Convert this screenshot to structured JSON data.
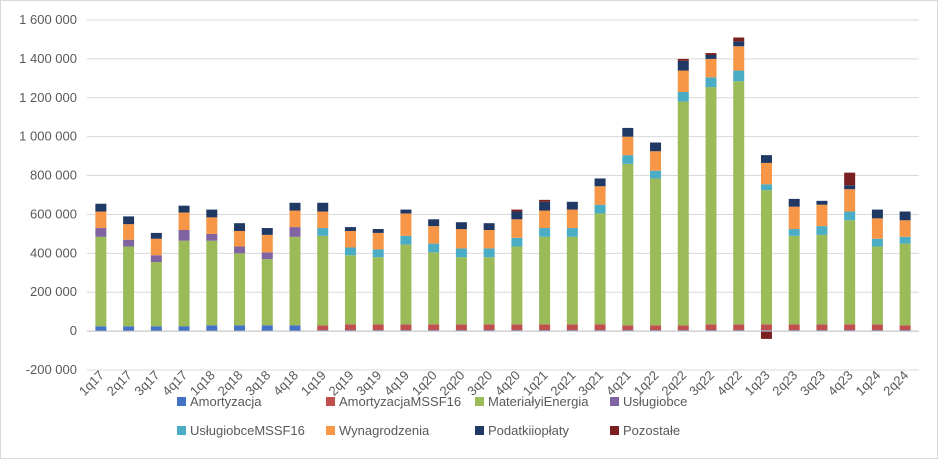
{
  "chart_data": {
    "type": "bar",
    "stacked": true,
    "title": "",
    "xlabel": "",
    "ylabel": "",
    "ylim": [
      -200000,
      1600000
    ],
    "yticks": [
      -200000,
      0,
      200000,
      400000,
      600000,
      800000,
      1000000,
      1200000,
      1400000,
      1600000
    ],
    "ytick_labels": [
      "-200 000",
      "0",
      "200 000",
      "400 000",
      "600 000",
      "800 000",
      "1 000 000",
      "1 200 000",
      "1 400 000",
      "1 600 000"
    ],
    "grid": "horizontal",
    "legend_position": "bottom",
    "categories": [
      "1q17",
      "2q17",
      "3q17",
      "4q17",
      "1q18",
      "2q18",
      "3q18",
      "4q18",
      "1q19",
      "2q19",
      "3q19",
      "4q19",
      "1q20",
      "2q20",
      "3q20",
      "4q20",
      "1q21",
      "2q21",
      "3q21",
      "4q21",
      "1q22",
      "2q22",
      "3q22",
      "4q22",
      "1q23",
      "2q23",
      "3q23",
      "4q23",
      "1q24",
      "2q24"
    ],
    "series": [
      {
        "name": "Amortyzacja",
        "color": "#4472c4",
        "values": [
          25000,
          25000,
          25000,
          25000,
          30000,
          30000,
          30000,
          30000,
          5000,
          5000,
          5000,
          5000,
          5000,
          5000,
          5000,
          5000,
          5000,
          5000,
          5000,
          5000,
          5000,
          5000,
          5000,
          5000,
          5000,
          5000,
          5000,
          5000,
          5000,
          5000
        ]
      },
      {
        "name": "AmortyzacjaMSSF16",
        "color": "#c0504d",
        "values": [
          0,
          0,
          0,
          0,
          0,
          0,
          0,
          0,
          25000,
          30000,
          30000,
          30000,
          30000,
          30000,
          30000,
          30000,
          30000,
          30000,
          30000,
          25000,
          25000,
          25000,
          30000,
          30000,
          30000,
          30000,
          30000,
          30000,
          30000,
          25000
        ]
      },
      {
        "name": "MateriałyiEnergia",
        "color": "#9bbb59",
        "values": [
          460000,
          410000,
          330000,
          440000,
          435000,
          370000,
          340000,
          455000,
          460000,
          355000,
          345000,
          410000,
          370000,
          345000,
          345000,
          400000,
          450000,
          450000,
          570000,
          830000,
          755000,
          1150000,
          1220000,
          1250000,
          690000,
          455000,
          460000,
          535000,
          400000,
          420000
        ]
      },
      {
        "name": "Usługiobce",
        "color": "#8064a2",
        "values": [
          45000,
          35000,
          35000,
          55000,
          35000,
          35000,
          35000,
          50000,
          0,
          0,
          0,
          0,
          0,
          0,
          0,
          0,
          0,
          0,
          0,
          0,
          0,
          0,
          0,
          0,
          0,
          0,
          0,
          0,
          0,
          0
        ]
      },
      {
        "name": "UsługiobceMSSF16",
        "color": "#4bacc6",
        "values": [
          0,
          0,
          0,
          0,
          0,
          0,
          0,
          0,
          40000,
          40000,
          40000,
          45000,
          45000,
          45000,
          45000,
          45000,
          45000,
          45000,
          45000,
          45000,
          40000,
          50000,
          50000,
          55000,
          30000,
          35000,
          45000,
          45000,
          40000,
          35000
        ]
      },
      {
        "name": "Wynagrodzenia",
        "color": "#f79646",
        "values": [
          85000,
          80000,
          85000,
          90000,
          85000,
          80000,
          90000,
          85000,
          85000,
          85000,
          85000,
          115000,
          90000,
          100000,
          95000,
          95000,
          90000,
          95000,
          95000,
          95000,
          100000,
          110000,
          95000,
          125000,
          110000,
          115000,
          110000,
          115000,
          105000,
          85000
        ]
      },
      {
        "name": "Podatkiiopłaty",
        "color": "#1f3864",
        "values": [
          40000,
          40000,
          30000,
          35000,
          40000,
          40000,
          35000,
          40000,
          45000,
          20000,
          20000,
          20000,
          35000,
          35000,
          35000,
          40000,
          45000,
          40000,
          40000,
          45000,
          45000,
          50000,
          20000,
          25000,
          40000,
          40000,
          20000,
          20000,
          45000,
          45000
        ]
      },
      {
        "name": "Pozostałe",
        "color": "#7b2020",
        "values": [
          0,
          0,
          0,
          0,
          0,
          0,
          0,
          0,
          0,
          0,
          0,
          0,
          0,
          0,
          0,
          10000,
          10000,
          0,
          0,
          0,
          0,
          10000,
          10000,
          20000,
          -40000,
          0,
          0,
          65000,
          0,
          0
        ]
      }
    ]
  }
}
